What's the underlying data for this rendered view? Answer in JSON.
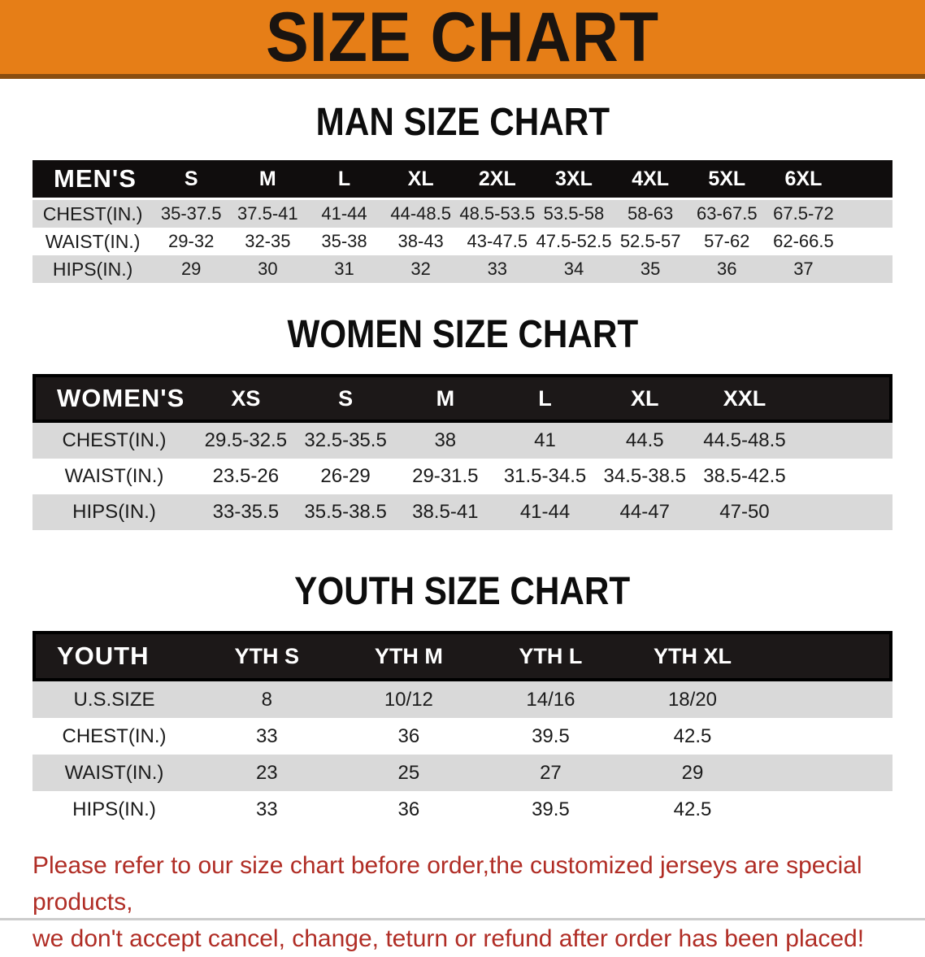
{
  "banner": {
    "title": "SIZE CHART"
  },
  "sections": [
    {
      "id": "men",
      "heading": "MAN SIZE CHART",
      "header_label": "MEN'S",
      "columns": [
        "S",
        "M",
        "L",
        "XL",
        "2XL",
        "3XL",
        "4XL",
        "5XL",
        "6XL"
      ],
      "rows": [
        {
          "label": "CHEST(IN.)",
          "values": [
            "35-37.5",
            "37.5-41",
            "41-44",
            "44-48.5",
            "48.5-53.5",
            "53.5-58",
            "58-63",
            "63-67.5",
            "67.5-72"
          ]
        },
        {
          "label": "WAIST(IN.)",
          "values": [
            "29-32",
            "32-35",
            "35-38",
            "38-43",
            "43-47.5",
            "47.5-52.5",
            "52.5-57",
            "57-62",
            "62-66.5"
          ]
        },
        {
          "label": "HIPS(IN.)",
          "values": [
            "29",
            "30",
            "31",
            "32",
            "33",
            "34",
            "35",
            "36",
            "37"
          ]
        }
      ]
    },
    {
      "id": "women",
      "heading": "WOMEN SIZE CHART",
      "header_label": "WOMEN'S",
      "columns": [
        "XS",
        "S",
        "M",
        "L",
        "XL",
        "XXL"
      ],
      "rows": [
        {
          "label": "CHEST(IN.)",
          "values": [
            "29.5-32.5",
            "32.5-35.5",
            "38",
            "41",
            "44.5",
            "44.5-48.5"
          ]
        },
        {
          "label": "WAIST(IN.)",
          "values": [
            "23.5-26",
            "26-29",
            "29-31.5",
            "31.5-34.5",
            "34.5-38.5",
            "38.5-42.5"
          ]
        },
        {
          "label": "HIPS(IN.)",
          "values": [
            "33-35.5",
            "35.5-38.5",
            "38.5-41",
            "41-44",
            "44-47",
            "47-50"
          ]
        }
      ]
    },
    {
      "id": "youth",
      "heading": "YOUTH SIZE CHART",
      "header_label": "YOUTH",
      "columns": [
        "YTH S",
        "YTH M",
        "YTH L",
        "YTH XL"
      ],
      "rows": [
        {
          "label": "U.S.SIZE",
          "values": [
            "8",
            "10/12",
            "14/16",
            "18/20"
          ]
        },
        {
          "label": "CHEST(IN.)",
          "values": [
            "33",
            "36",
            "39.5",
            "42.5"
          ]
        },
        {
          "label": "WAIST(IN.)",
          "values": [
            "23",
            "25",
            "27",
            "29"
          ]
        },
        {
          "label": "HIPS(IN.)",
          "values": [
            "33",
            "36",
            "39.5",
            "42.5"
          ]
        }
      ]
    }
  ],
  "disclaimer": {
    "line1": "Please refer to our size chart before order,the customized jerseys are special products,",
    "line2": "we don't accept cancel, change, teturn or refund after order has been placed!"
  },
  "colors": {
    "banner_bg": "#e67e17",
    "banner_text": "#1a1410",
    "table_header_bg": "#100d0d",
    "row_stripe": "#d9d9d9",
    "disclaimer_red": "#b02d25"
  }
}
